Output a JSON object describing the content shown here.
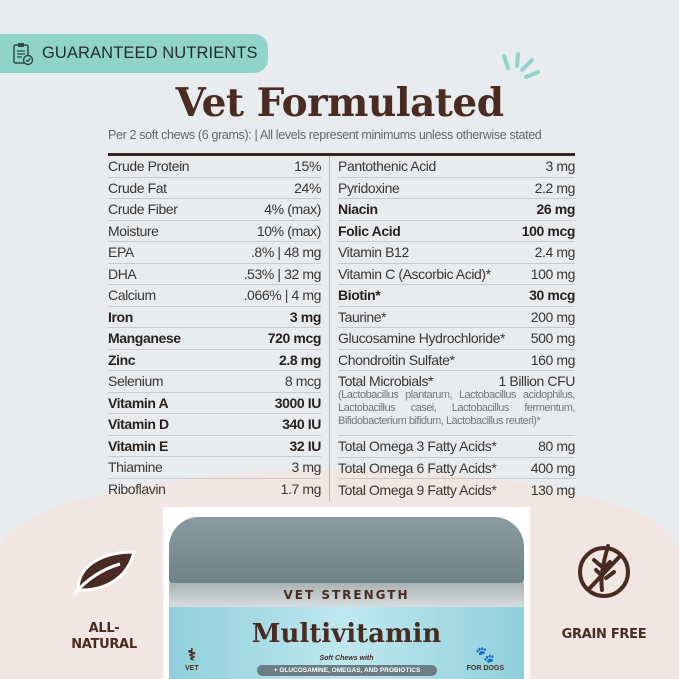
{
  "badge": {
    "label": "GUARANTEED NUTRIENTS",
    "icon": "clipboard-check-icon"
  },
  "title": "Vet Formulated",
  "subtitle": "Per 2 soft chews (6 grams):  |  All levels represent minimums unless otherwise stated",
  "left_rows": [
    {
      "name": "Crude Protein",
      "value": "15%",
      "bold": false
    },
    {
      "name": "Crude Fat",
      "value": "24%",
      "bold": false
    },
    {
      "name": "Crude Fiber",
      "value": "4% (max)",
      "bold": false
    },
    {
      "name": "Moisture",
      "value": "10% (max)",
      "bold": false
    },
    {
      "name": "EPA",
      "value": ".8% | 48 mg",
      "bold": false
    },
    {
      "name": "DHA",
      "value": ".53% | 32 mg",
      "bold": false
    },
    {
      "name": "Calcium",
      "value": ".066% | 4 mg",
      "bold": false
    },
    {
      "name": "Iron",
      "value": "3 mg",
      "bold": true
    },
    {
      "name": "Manganese",
      "value": "720 mcg",
      "bold": true
    },
    {
      "name": "Zinc",
      "value": "2.8 mg",
      "bold": true
    },
    {
      "name": "Selenium",
      "value": "8 mcg",
      "bold": false
    },
    {
      "name": "Vitamin A",
      "value": "3000 IU",
      "bold": true
    },
    {
      "name": "Vitamin D",
      "value": "340 IU",
      "bold": true
    },
    {
      "name": "Vitamin E",
      "value": "32 IU",
      "bold": true
    },
    {
      "name": "Thiamine",
      "value": "3 mg",
      "bold": false
    },
    {
      "name": "Riboflavin",
      "value": "1.7 mg",
      "bold": false
    }
  ],
  "right_rows": [
    {
      "name": "Pantothenic Acid",
      "value": "3 mg",
      "bold": false
    },
    {
      "name": "Pyridoxine",
      "value": "2.2 mg",
      "bold": false
    },
    {
      "name": "Niacin",
      "value": "26 mg",
      "bold": true
    },
    {
      "name": "Folic Acid",
      "value": "100 mcg",
      "bold": true
    },
    {
      "name": "Vitamin B12",
      "value": "2.4 mg",
      "bold": false
    },
    {
      "name": "Vitamin C (Ascorbic Acid)*",
      "value": "100 mg",
      "bold": false
    },
    {
      "name": "Biotin*",
      "value": "30 mcg",
      "bold": true
    },
    {
      "name": "Taurine*",
      "value": "200 mg",
      "bold": false
    },
    {
      "name": "Glucosamine Hydrochloride*",
      "value": "500 mg",
      "bold": false
    },
    {
      "name": "Chondroitin Sulfate*",
      "value": "160 mg",
      "bold": false
    }
  ],
  "microbials": {
    "name": "Total Microbials*",
    "value": "1 Billion CFU",
    "detail": "(Lactobacillus plantarum, Lactobacillus acidophilus, Lactobacillus casei, Lactobacillus fermentum, Bifidobacterium bifidum, Lactobacillus reuteri)*"
  },
  "omega_rows": [
    {
      "name": "Total Omega 3 Fatty Acids*",
      "value": "80 mg"
    },
    {
      "name": "Total Omega 6 Fatty Acids*",
      "value": "400 mg"
    },
    {
      "name": "Total Omega 9 Fatty Acids*",
      "value": "130 mg"
    }
  ],
  "product": {
    "band": "VET STRENGTH",
    "name": "Multivitamin",
    "sub": "Soft Chews with",
    "pill": "+ GLUCOSAMINE, OMEGAS, AND PROBIOTICS",
    "vet": "VET",
    "dogs": "FOR DOGS"
  },
  "features": {
    "left": [
      "ALL-",
      "NATURAL"
    ],
    "right": "GRAIN FREE"
  },
  "colors": {
    "brown": "#4a2b22",
    "teal": "#8fd3cb",
    "background": "#e8ecef",
    "pink": "#f2e6e3"
  }
}
